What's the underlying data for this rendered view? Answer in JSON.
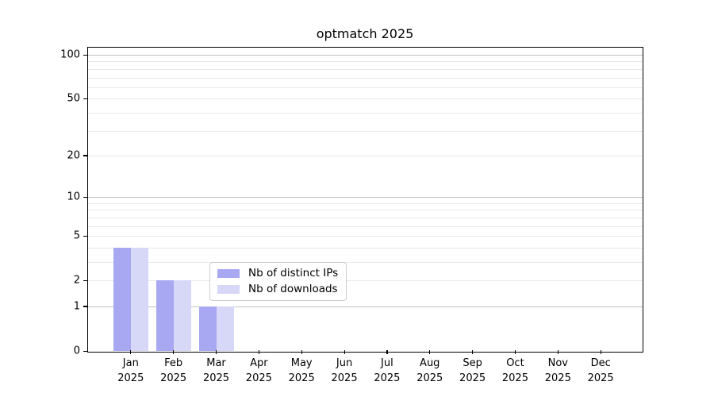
{
  "chart_data": {
    "type": "bar",
    "title": "optmatch 2025",
    "categories": [
      "Jan",
      "Feb",
      "Mar",
      "Apr",
      "May",
      "Jun",
      "Jul",
      "Aug",
      "Sep",
      "Oct",
      "Nov",
      "Dec"
    ],
    "x_sublabel_year": "2025",
    "series": [
      {
        "name": "Nb of distinct IPs",
        "color": "#a8a8f2",
        "values": [
          4,
          2,
          1,
          0,
          0,
          0,
          0,
          0,
          0,
          0,
          0,
          0
        ]
      },
      {
        "name": "Nb of downloads",
        "color": "#d7d7f8",
        "values": [
          4,
          2,
          1,
          0,
          0,
          0,
          0,
          0,
          0,
          0,
          0,
          0
        ]
      }
    ],
    "yscale": "log1p",
    "ylim": [
      0,
      112
    ],
    "ytick_values": [
      0,
      1,
      2,
      5,
      10,
      20,
      50,
      100
    ],
    "ytick_labels": [
      "0",
      "1",
      "2",
      "5",
      "10",
      "20",
      "50",
      "100"
    ],
    "major_gridlines": [
      1,
      10,
      100
    ],
    "minor_gridlines": [
      2,
      3,
      4,
      5,
      6,
      7,
      8,
      9,
      20,
      30,
      40,
      50,
      60,
      70,
      80,
      90
    ],
    "grid_major_color": "#c2c2c2",
    "grid_minor_color": "#e9e9e9",
    "axis_color": "#000000",
    "legend_position": "bottom-center",
    "legend_items": [
      {
        "label": "Nb of distinct IPs",
        "color": "#a8a8f2"
      },
      {
        "label": "Nb of downloads",
        "color": "#d7d7f8"
      }
    ]
  }
}
